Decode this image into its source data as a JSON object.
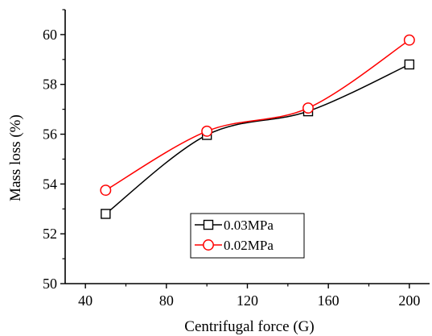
{
  "chart_data": {
    "type": "line",
    "xlabel": "Centrifugal force (G)",
    "ylabel": "Mass loss (%)",
    "xlim": [
      30,
      210
    ],
    "ylim": [
      50,
      61
    ],
    "xticks": [
      40,
      80,
      120,
      160,
      200
    ],
    "yticks": [
      50,
      52,
      54,
      56,
      58,
      60
    ],
    "x": [
      50,
      100,
      150,
      200
    ],
    "series": [
      {
        "name": "0.03MPa",
        "values": [
          52.8,
          55.97,
          56.92,
          58.8
        ],
        "color": "#000000",
        "marker": "square"
      },
      {
        "name": "0.02MPa",
        "values": [
          53.75,
          56.12,
          57.05,
          59.78
        ],
        "color": "#ff0000",
        "marker": "circle"
      }
    ],
    "legend_position": "bottom-center",
    "grid": false
  }
}
